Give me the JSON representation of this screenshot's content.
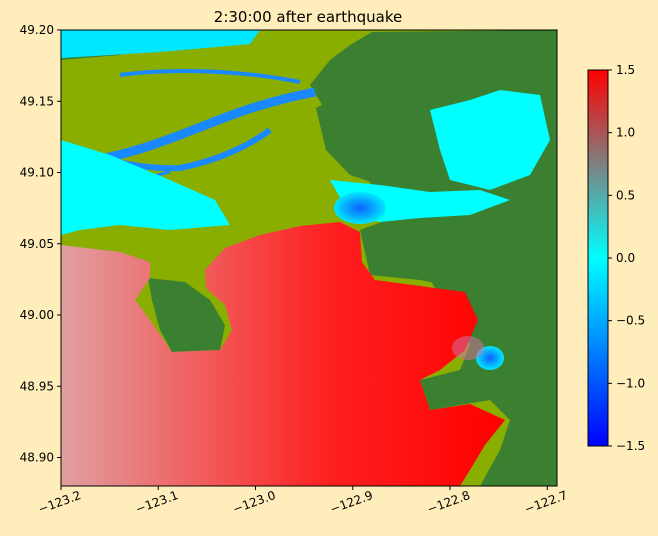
{
  "chart_data": {
    "type": "heatmap",
    "title": "2:30:00 after earthquake",
    "xlabel": "",
    "ylabel": "",
    "xlim": [
      -123.2,
      -122.69
    ],
    "ylim": [
      48.88,
      49.2
    ],
    "x_ticks": [
      -123.2,
      -123.1,
      -123.0,
      -122.9,
      -122.8,
      -122.7
    ],
    "x_tick_labels": [
      "−123.2",
      "−123.1",
      "−123.0",
      "−122.9",
      "−122.8",
      "−122.7"
    ],
    "y_ticks": [
      48.9,
      48.95,
      49.0,
      49.05,
      49.1,
      49.15,
      49.2
    ],
    "y_tick_labels": [
      "48.90",
      "48.95",
      "49.00",
      "49.05",
      "49.10",
      "49.15",
      "49.20"
    ],
    "colorbar": {
      "range": [
        -1.5,
        1.5
      ],
      "ticks": [
        -1.5,
        -1.0,
        -0.5,
        0.0,
        0.5,
        1.0,
        1.5
      ],
      "tick_labels": [
        "−1.5",
        "−1.0",
        "−0.5",
        "0.0",
        "0.5",
        "1.0",
        "1.5"
      ],
      "colors": [
        "#0000ff",
        "#00ffff",
        "#ff0000"
      ]
    },
    "land_colors": [
      "#8aae00",
      "#3a8030"
    ],
    "grid": false,
    "legend": "colorbar-right"
  }
}
